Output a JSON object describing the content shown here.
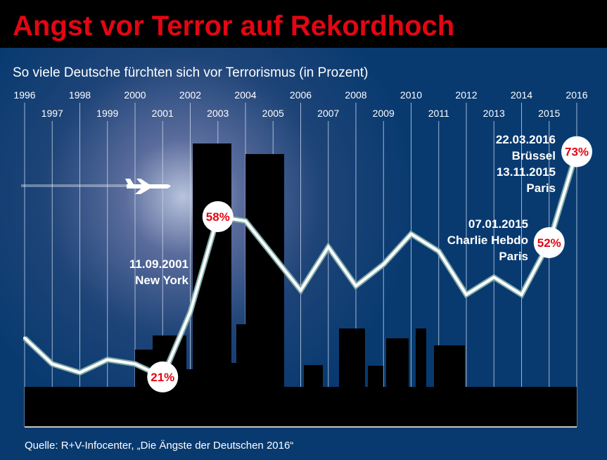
{
  "chart_data": {
    "type": "line",
    "title": "Angst vor Terror auf Rekordhoch",
    "subtitle": "So viele Deutsche fürchten sich vor Terrorismus (in Prozent)",
    "x": [
      "1996",
      "1997",
      "1998",
      "1999",
      "2000",
      "2001",
      "2002",
      "2003",
      "2004",
      "2005",
      "2006",
      "2007",
      "2008",
      "2009",
      "2010",
      "2011",
      "2012",
      "2013",
      "2014",
      "2015",
      "2016"
    ],
    "values": [
      30,
      24,
      22,
      25,
      24,
      21,
      36,
      58,
      57,
      49,
      41,
      51,
      42,
      47,
      54,
      50,
      40,
      44,
      40,
      52,
      73
    ],
    "ylim": [
      0,
      80
    ],
    "unit": "%",
    "grid": "vertical lines per year",
    "labeled_points": [
      {
        "x": "2001",
        "label": "21%"
      },
      {
        "x": "2003",
        "label": "58%"
      },
      {
        "x": "2015",
        "label": "52%"
      },
      {
        "x": "2016",
        "label": "73%"
      }
    ],
    "annotations": [
      {
        "x": "2001",
        "lines": [
          "11.09.2001",
          "New York"
        ]
      },
      {
        "x": "2015",
        "lines": [
          "07.01.2015",
          "Charlie Hebdo",
          "Paris"
        ]
      },
      {
        "x": "2016",
        "lines": [
          "22.03.2016",
          "Brüssel",
          "13.11.2015",
          "Paris"
        ]
      }
    ],
    "source": "Quelle: R+V-Infocenter, „Die Ängste der Deutschen 2016“"
  },
  "colors": {
    "title": "#e30613",
    "background": "#0d3c72",
    "line": "#ffffff",
    "skyline": "#000000"
  },
  "icons": [
    "airplane-icon"
  ]
}
